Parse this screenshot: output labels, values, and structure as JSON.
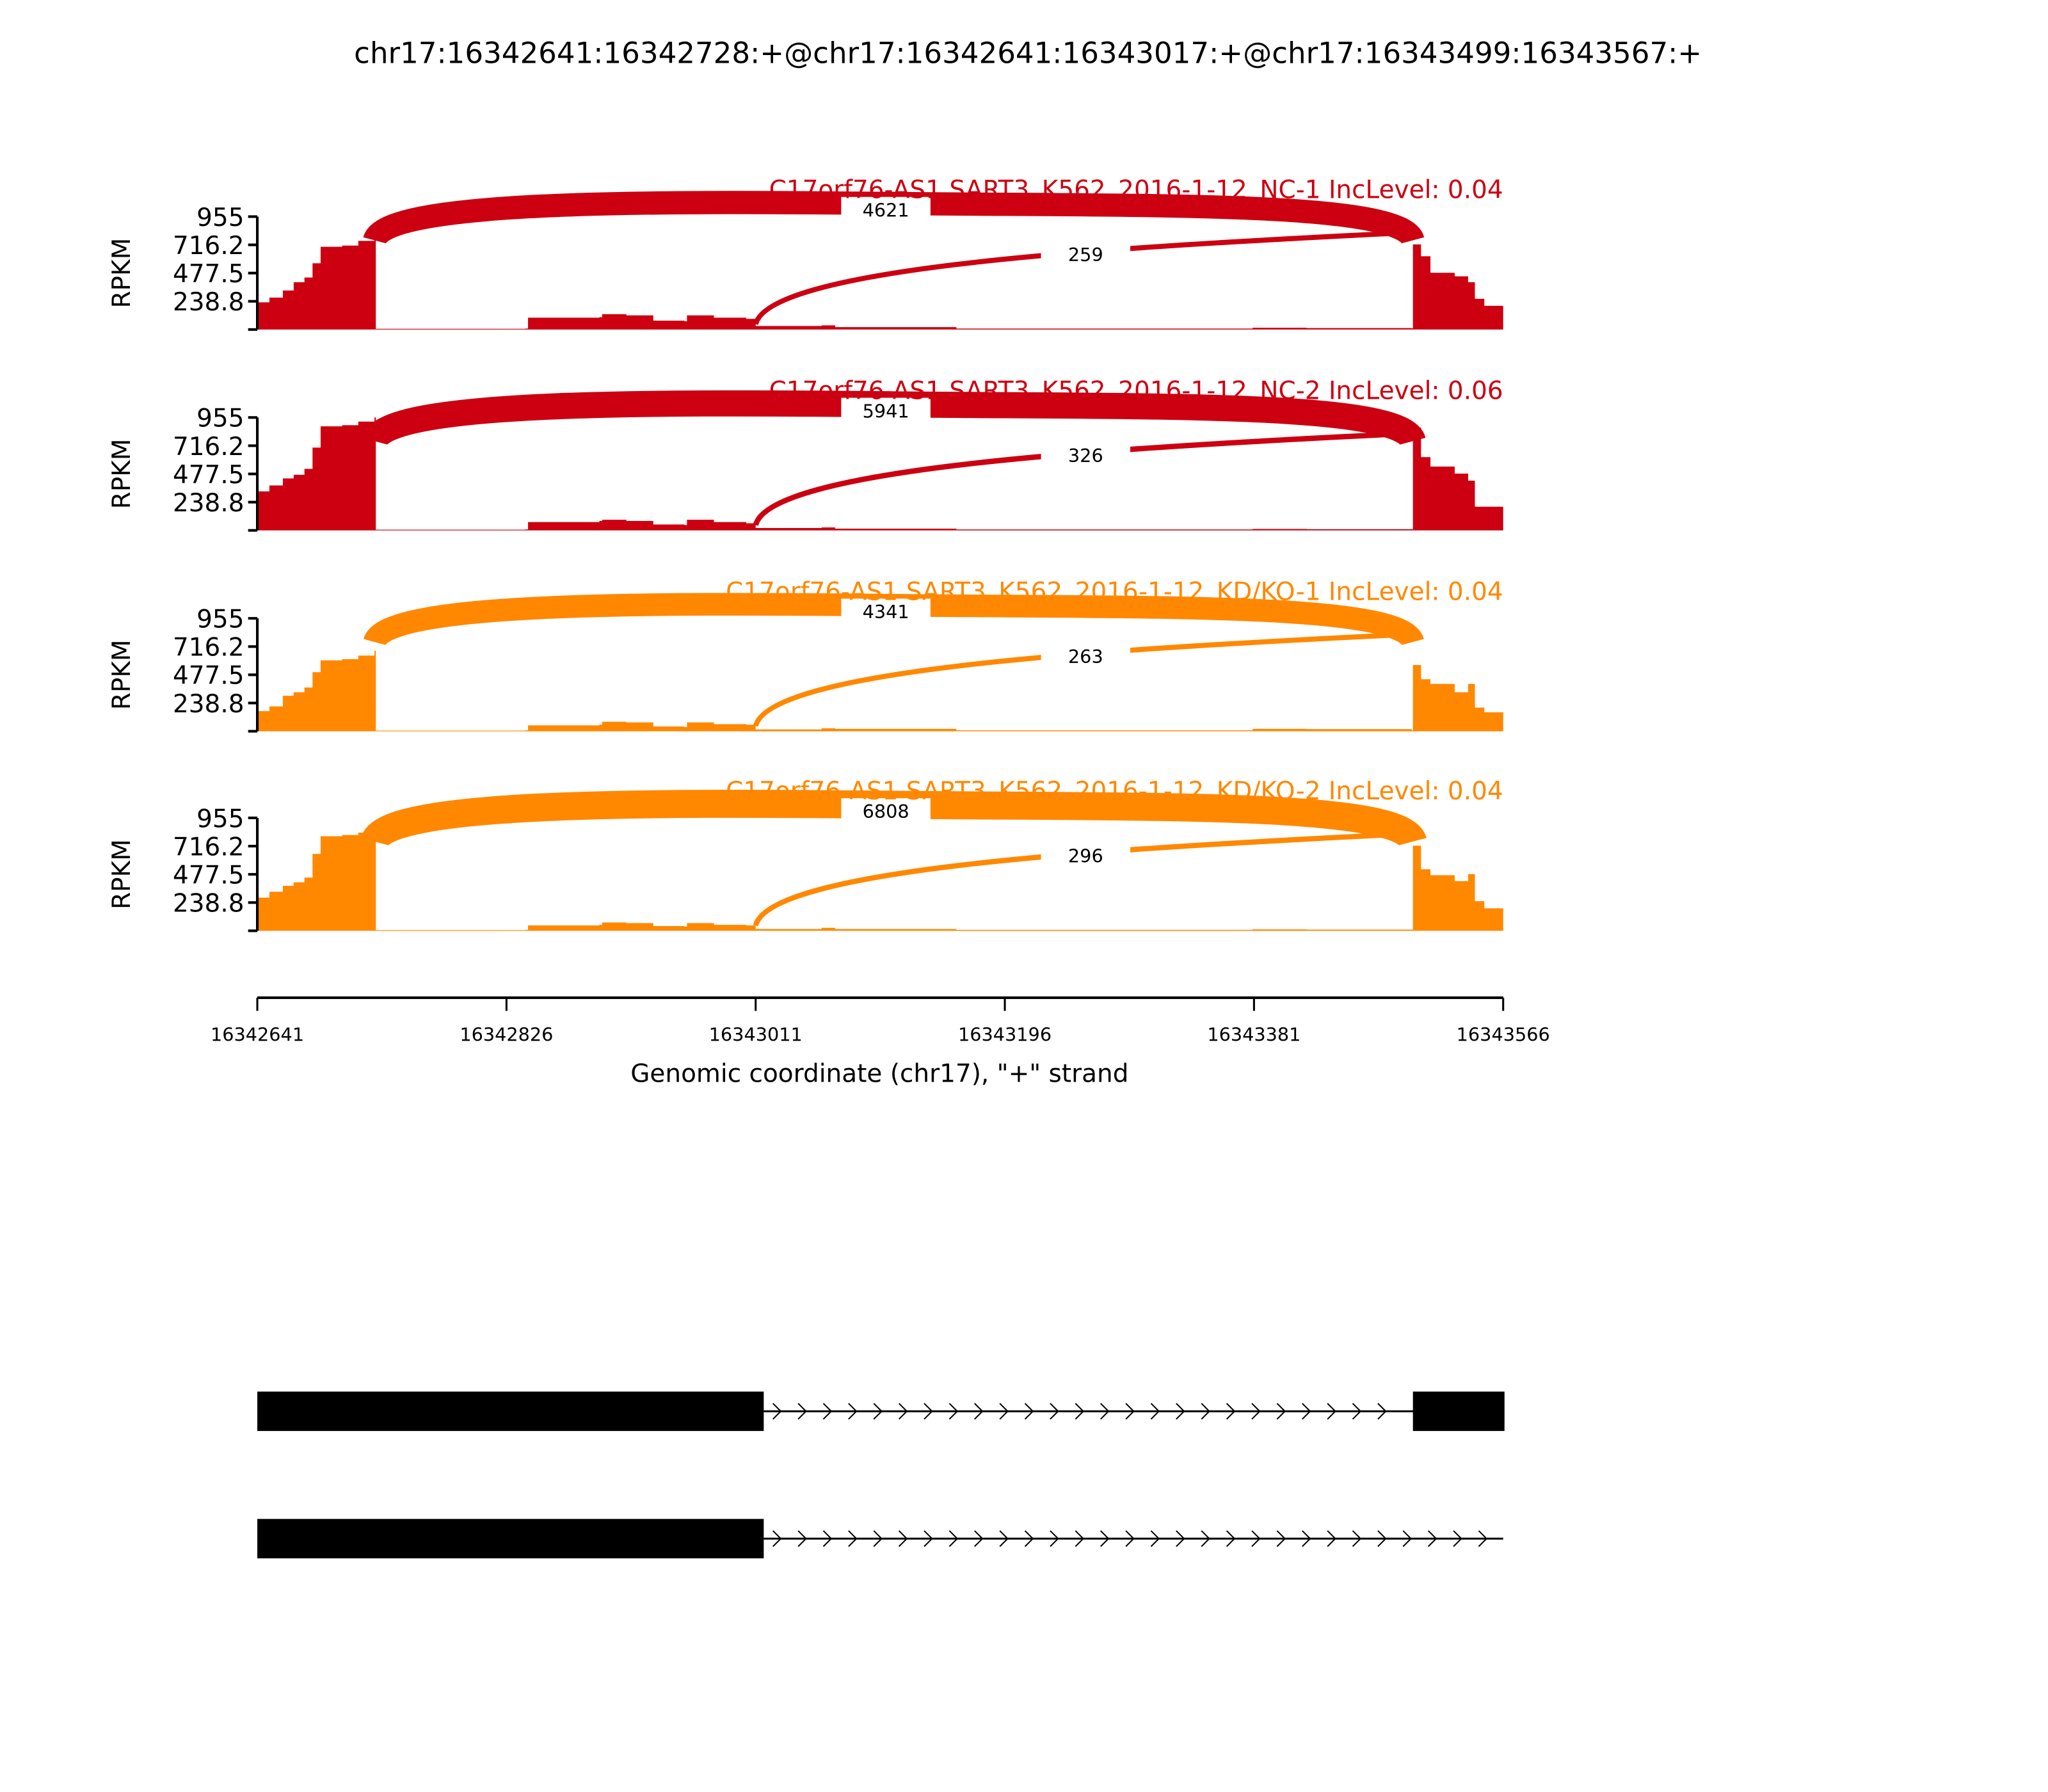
{
  "chart_data": {
    "type": "area",
    "title": "chr17:16342641:16342728:+@chr17:16342641:16343017:+@chr17:16343499:16343567:+",
    "xlabel": "Genomic coordinate (chr17), \"+\" strand",
    "ylabel": "RPKM",
    "xlim": [
      16342641,
      16343566
    ],
    "xticks": [
      "16342641",
      "16342826",
      "16343011",
      "16343196",
      "16343381",
      "16343566"
    ],
    "ylim": [
      0,
      955
    ],
    "yticks": [
      "955",
      "716.2",
      "477.5",
      "238.8"
    ],
    "ytick_values": [
      955,
      716.2,
      477.5,
      238.8
    ],
    "colors": {
      "NC": "#CC0011",
      "KD": "#FF8800"
    },
    "samples": [
      {
        "label": "C17orf76-AS1 SART3_K562_2016-1-12_NC-1 IncLevel: 0.04",
        "color": "#CC0011",
        "junctions": [
          {
            "start": 16342728,
            "end": 16343499,
            "count": "4621"
          },
          {
            "start": 16343011,
            "end": 16343499,
            "count": "259"
          }
        ],
        "coverage": [
          [
            16342641,
            230
          ],
          [
            16342650,
            270
          ],
          [
            16342660,
            330
          ],
          [
            16342668,
            400
          ],
          [
            16342676,
            440
          ],
          [
            16342682,
            560
          ],
          [
            16342688,
            700
          ],
          [
            16342704,
            710
          ],
          [
            16342716,
            750
          ],
          [
            16342728,
            780
          ],
          [
            16342729,
            6
          ],
          [
            16342840,
            8
          ],
          [
            16342842,
            100
          ],
          [
            16342895,
            105
          ],
          [
            16342897,
            130
          ],
          [
            16342915,
            120
          ],
          [
            16342935,
            75
          ],
          [
            16342958,
            70
          ],
          [
            16342960,
            120
          ],
          [
            16342980,
            100
          ],
          [
            16343004,
            90
          ],
          [
            16343011,
            30
          ],
          [
            16343060,
            35
          ],
          [
            16343070,
            20
          ],
          [
            16343160,
            8
          ],
          [
            16343380,
            15
          ],
          [
            16343420,
            12
          ],
          [
            16343498,
            10
          ],
          [
            16343499,
            720
          ],
          [
            16343505,
            620
          ],
          [
            16343512,
            480
          ],
          [
            16343530,
            450
          ],
          [
            16343540,
            400
          ],
          [
            16343545,
            260
          ],
          [
            16343552,
            200
          ],
          [
            16343566,
            200
          ]
        ]
      },
      {
        "label": "C17orf76-AS1 SART3_K562_2016-1-12_NC-2 IncLevel: 0.06",
        "color": "#CC0011",
        "junctions": [
          {
            "start": 16342728,
            "end": 16343499,
            "count": "5941"
          },
          {
            "start": 16343011,
            "end": 16343499,
            "count": "326"
          }
        ],
        "coverage": [
          [
            16342641,
            330
          ],
          [
            16342650,
            380
          ],
          [
            16342660,
            440
          ],
          [
            16342668,
            470
          ],
          [
            16342676,
            520
          ],
          [
            16342682,
            700
          ],
          [
            16342688,
            880
          ],
          [
            16342704,
            890
          ],
          [
            16342716,
            920
          ],
          [
            16342728,
            960
          ],
          [
            16342729,
            6
          ],
          [
            16342840,
            8
          ],
          [
            16342842,
            70
          ],
          [
            16342895,
            80
          ],
          [
            16342897,
            90
          ],
          [
            16342915,
            80
          ],
          [
            16342935,
            50
          ],
          [
            16342958,
            45
          ],
          [
            16342960,
            90
          ],
          [
            16342980,
            70
          ],
          [
            16343004,
            60
          ],
          [
            16343011,
            20
          ],
          [
            16343060,
            25
          ],
          [
            16343070,
            15
          ],
          [
            16343160,
            8
          ],
          [
            16343380,
            12
          ],
          [
            16343420,
            10
          ],
          [
            16343498,
            10
          ],
          [
            16343499,
            870
          ],
          [
            16343505,
            620
          ],
          [
            16343512,
            540
          ],
          [
            16343530,
            480
          ],
          [
            16343540,
            420
          ],
          [
            16343545,
            200
          ],
          [
            16343552,
            200
          ],
          [
            16343566,
            200
          ]
        ]
      },
      {
        "label": "C17orf76-AS1 SART3_K562_2016-1-12_KD/KO-1 IncLevel: 0.04",
        "color": "#FF8800",
        "junctions": [
          {
            "start": 16342728,
            "end": 16343499,
            "count": "4341"
          },
          {
            "start": 16343011,
            "end": 16343499,
            "count": "263"
          }
        ],
        "coverage": [
          [
            16342641,
            170
          ],
          [
            16342650,
            210
          ],
          [
            16342660,
            300
          ],
          [
            16342668,
            330
          ],
          [
            16342676,
            370
          ],
          [
            16342682,
            500
          ],
          [
            16342688,
            600
          ],
          [
            16342704,
            610
          ],
          [
            16342716,
            640
          ],
          [
            16342728,
            680
          ],
          [
            16342729,
            6
          ],
          [
            16342840,
            8
          ],
          [
            16342842,
            50
          ],
          [
            16342895,
            55
          ],
          [
            16342897,
            80
          ],
          [
            16342915,
            75
          ],
          [
            16342935,
            40
          ],
          [
            16342958,
            35
          ],
          [
            16342960,
            75
          ],
          [
            16342980,
            60
          ],
          [
            16343004,
            55
          ],
          [
            16343011,
            15
          ],
          [
            16343060,
            25
          ],
          [
            16343070,
            20
          ],
          [
            16343160,
            8
          ],
          [
            16343380,
            20
          ],
          [
            16343420,
            18
          ],
          [
            16343498,
            10
          ],
          [
            16343499,
            560
          ],
          [
            16343505,
            440
          ],
          [
            16343512,
            400
          ],
          [
            16343530,
            330
          ],
          [
            16343540,
            400
          ],
          [
            16343545,
            200
          ],
          [
            16343552,
            160
          ],
          [
            16343566,
            160
          ]
        ]
      },
      {
        "label": "C17orf76-AS1 SART3_K562_2016-1-12_KD/KO-2 IncLevel: 0.04",
        "color": "#FF8800",
        "junctions": [
          {
            "start": 16342728,
            "end": 16343499,
            "count": "6808"
          },
          {
            "start": 16343011,
            "end": 16343499,
            "count": "296"
          }
        ],
        "coverage": [
          [
            16342641,
            280
          ],
          [
            16342650,
            330
          ],
          [
            16342660,
            380
          ],
          [
            16342668,
            410
          ],
          [
            16342676,
            450
          ],
          [
            16342682,
            650
          ],
          [
            16342688,
            800
          ],
          [
            16342704,
            810
          ],
          [
            16342716,
            830
          ],
          [
            16342728,
            860
          ],
          [
            16342729,
            6
          ],
          [
            16342840,
            8
          ],
          [
            16342842,
            45
          ],
          [
            16342895,
            50
          ],
          [
            16342897,
            70
          ],
          [
            16342915,
            65
          ],
          [
            16342935,
            40
          ],
          [
            16342958,
            35
          ],
          [
            16342960,
            65
          ],
          [
            16342980,
            50
          ],
          [
            16343004,
            45
          ],
          [
            16343011,
            15
          ],
          [
            16343060,
            25
          ],
          [
            16343070,
            15
          ],
          [
            16343160,
            8
          ],
          [
            16343380,
            12
          ],
          [
            16343420,
            10
          ],
          [
            16343498,
            10
          ],
          [
            16343499,
            720
          ],
          [
            16343505,
            520
          ],
          [
            16343512,
            470
          ],
          [
            16343530,
            420
          ],
          [
            16343540,
            480
          ],
          [
            16343545,
            250
          ],
          [
            16343552,
            190
          ],
          [
            16343566,
            190
          ]
        ]
      }
    ],
    "transcripts": [
      {
        "exons": [
          [
            16342641,
            16343017
          ],
          [
            16343499,
            16343567
          ]
        ]
      },
      {
        "exons": [
          [
            16342641,
            16343017
          ]
        ]
      }
    ]
  }
}
